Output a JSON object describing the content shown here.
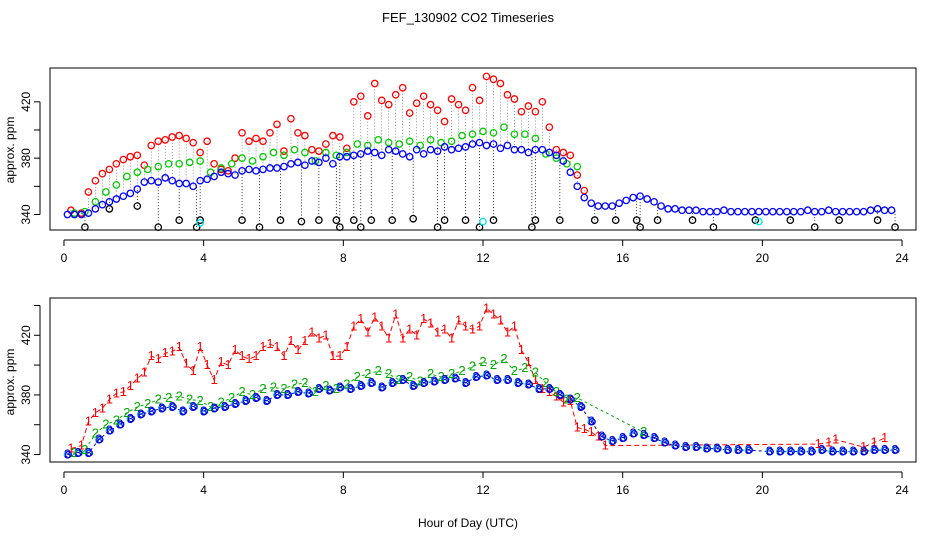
{
  "chart_data": [
    {
      "type": "scatter",
      "title": "FEF_130902  CO2 Timeseries",
      "xlabel": "",
      "ylabel": "approx. ppm",
      "xlim": [
        -0.4,
        24.4
      ],
      "ylim": [
        329,
        444
      ],
      "xticks": [
        0,
        4,
        8,
        12,
        16,
        20,
        24
      ],
      "yticks": [
        340,
        360,
        380,
        400,
        420
      ],
      "ytick_labels": [
        "340",
        "",
        "380",
        "",
        "420"
      ],
      "grid": false,
      "series": [
        {
          "color": "#FF0000",
          "x": [
            0.2,
            0.5,
            0.7,
            0.9,
            1.1,
            1.3,
            1.5,
            1.7,
            1.9,
            2.1,
            2.3,
            2.5,
            2.7,
            2.9,
            3.1,
            3.3,
            3.5,
            3.7,
            3.9,
            4.1,
            4.3,
            4.5,
            4.7,
            4.9,
            5.1,
            5.3,
            5.5,
            5.7,
            5.9,
            6.1,
            6.3,
            6.5,
            6.7,
            6.9,
            7.1,
            7.3,
            7.5,
            7.7,
            7.9,
            8.1,
            8.3,
            8.5,
            8.7,
            8.9,
            9.1,
            9.3,
            9.5,
            9.7,
            9.9,
            10.1,
            10.3,
            10.5,
            10.7,
            10.9,
            11.1,
            11.3,
            11.5,
            11.7,
            11.9,
            12.1,
            12.3,
            12.5,
            12.7,
            12.9,
            13.1,
            13.3,
            13.5,
            13.7,
            13.9,
            14.1,
            14.3,
            14.5,
            14.7,
            14.9
          ],
          "y": [
            343,
            341,
            356,
            364,
            369,
            372,
            376,
            379,
            381,
            382,
            375,
            389,
            392,
            393,
            395,
            396,
            394,
            391,
            384,
            392,
            376,
            372,
            371,
            380,
            398,
            392,
            394,
            392,
            398,
            404,
            385,
            408,
            398,
            396,
            386,
            385,
            390,
            396,
            395,
            387,
            420,
            424,
            410,
            433,
            421,
            418,
            425,
            430,
            412,
            419,
            424,
            418,
            414,
            406,
            422,
            418,
            414,
            430,
            421,
            438,
            436,
            433,
            425,
            422,
            413,
            417,
            413,
            420,
            402,
            386,
            384,
            382,
            368,
            357
          ]
        },
        {
          "color": "#00CC00",
          "x": [
            0.3,
            0.6,
            0.9,
            1.2,
            1.5,
            1.8,
            2.1,
            2.4,
            2.7,
            3.0,
            3.3,
            3.6,
            3.9,
            4.2,
            4.5,
            4.8,
            5.1,
            5.4,
            5.7,
            6.0,
            6.3,
            6.6,
            6.9,
            7.2,
            7.5,
            7.8,
            8.1,
            8.4,
            8.7,
            9.0,
            9.3,
            9.6,
            9.9,
            10.2,
            10.5,
            10.8,
            11.1,
            11.4,
            11.7,
            12.0,
            12.3,
            12.6,
            12.9,
            13.2,
            13.5,
            13.8,
            14.1,
            14.4,
            14.7
          ],
          "y": [
            341,
            342,
            349,
            356,
            361,
            367,
            370,
            372,
            374,
            376,
            376,
            377,
            378,
            370,
            373,
            376,
            380,
            378,
            381,
            384,
            382,
            386,
            384,
            378,
            384,
            382,
            384,
            390,
            389,
            393,
            391,
            390,
            392,
            389,
            393,
            391,
            392,
            396,
            397,
            399,
            398,
            402,
            397,
            397,
            394,
            383,
            380,
            376,
            374
          ]
        },
        {
          "color": "#0000FF",
          "x": [
            0.1,
            0.3,
            0.5,
            0.7,
            0.9,
            1.1,
            1.3,
            1.5,
            1.7,
            1.9,
            2.1,
            2.3,
            2.5,
            2.7,
            2.9,
            3.1,
            3.3,
            3.5,
            3.7,
            3.9,
            4.1,
            4.3,
            4.5,
            4.7,
            4.9,
            5.1,
            5.3,
            5.5,
            5.7,
            5.9,
            6.1,
            6.3,
            6.5,
            6.7,
            6.9,
            7.1,
            7.3,
            7.5,
            7.7,
            7.9,
            8.1,
            8.3,
            8.5,
            8.7,
            8.9,
            9.1,
            9.3,
            9.5,
            9.7,
            9.9,
            10.1,
            10.3,
            10.5,
            10.7,
            10.9,
            11.1,
            11.3,
            11.5,
            11.7,
            11.9,
            12.1,
            12.3,
            12.5,
            12.7,
            12.9,
            13.1,
            13.3,
            13.5,
            13.7,
            13.9,
            14.1,
            14.3,
            14.5,
            14.7,
            14.9,
            15.1,
            15.3,
            15.5,
            15.7,
            15.9,
            16.1,
            16.3,
            16.5,
            16.7,
            16.9,
            17.1,
            17.3,
            17.5,
            17.7,
            17.9,
            18.1,
            18.3,
            18.5,
            18.7,
            18.9,
            19.1,
            19.3,
            19.5,
            19.7,
            19.9,
            20.1,
            20.3,
            20.5,
            20.7,
            20.9,
            21.1,
            21.3,
            21.5,
            21.7,
            21.9,
            22.1,
            22.3,
            22.5,
            22.7,
            22.9,
            23.1,
            23.3,
            23.5,
            23.7
          ],
          "y": [
            340,
            340,
            340,
            341,
            344,
            347,
            349,
            351,
            353,
            355,
            358,
            363,
            364,
            363,
            366,
            364,
            362,
            362,
            360,
            364,
            365,
            367,
            370,
            369,
            368,
            371,
            372,
            371,
            372,
            373,
            373,
            374,
            376,
            377,
            375,
            378,
            377,
            380,
            376,
            381,
            381,
            382,
            383,
            385,
            384,
            382,
            386,
            385,
            383,
            381,
            386,
            383,
            386,
            385,
            388,
            386,
            387,
            388,
            390,
            391,
            389,
            390,
            387,
            389,
            386,
            386,
            384,
            386,
            386,
            384,
            382,
            378,
            370,
            360,
            352,
            348,
            346,
            346,
            346,
            348,
            350,
            352,
            353,
            351,
            349,
            346,
            344,
            344,
            343,
            343,
            343,
            342,
            342,
            342,
            343,
            342,
            342,
            342,
            342,
            342,
            342,
            342,
            342,
            342,
            342,
            342,
            343,
            342,
            342,
            343,
            342,
            342,
            342,
            342,
            342,
            343,
            344,
            343,
            343
          ]
        },
        {
          "color": "#00E5EE",
          "x": [
            3.9,
            12.0,
            19.9
          ],
          "y": [
            334,
            335,
            335
          ]
        },
        {
          "color": "#000000",
          "x": [
            0.6,
            1.3,
            2.1,
            2.7,
            3.3,
            3.8,
            3.9,
            5.1,
            5.6,
            6.2,
            6.8,
            7.3,
            7.8,
            7.9,
            8.3,
            8.5,
            8.8,
            9.4,
            10.0,
            10.7,
            10.9,
            11.5,
            11.9,
            12.3,
            13.4,
            13.5,
            14.2,
            15.2,
            15.8,
            16.4,
            16.5,
            17.0,
            18.0,
            18.6,
            19.8,
            20.8,
            21.5,
            22.2,
            23.3,
            23.8
          ],
          "y": [
            331,
            344,
            346,
            331,
            336,
            331,
            336,
            336,
            331,
            336,
            335,
            336,
            336,
            331,
            336,
            331,
            336,
            336,
            337,
            331,
            336,
            336,
            331,
            336,
            331,
            336,
            336,
            336,
            336,
            336,
            331,
            336,
            336,
            331,
            336,
            336,
            331,
            336,
            336,
            331
          ]
        }
      ]
    },
    {
      "type": "line",
      "title": "",
      "xlabel": "Hour of Day (UTC)",
      "ylabel": "approx. ppm",
      "xlim": [
        -0.4,
        24.4
      ],
      "ylim": [
        335,
        445
      ],
      "xticks": [
        0,
        4,
        8,
        12,
        16,
        20,
        24
      ],
      "yticks": [
        340,
        360,
        380,
        400,
        420,
        440
      ],
      "ytick_labels": [
        "340",
        "",
        "380",
        "",
        "420",
        ""
      ],
      "grid": false,
      "series": [
        {
          "color": "#FF0000",
          "marker": "1",
          "x": [
            0.2,
            0.5,
            0.7,
            0.9,
            1.1,
            1.3,
            1.5,
            1.7,
            1.9,
            2.1,
            2.3,
            2.5,
            2.7,
            2.9,
            3.1,
            3.3,
            3.5,
            3.7,
            3.9,
            4.1,
            4.3,
            4.5,
            4.7,
            4.9,
            5.1,
            5.3,
            5.5,
            5.7,
            5.9,
            6.1,
            6.3,
            6.5,
            6.7,
            6.9,
            7.1,
            7.3,
            7.5,
            7.7,
            7.9,
            8.1,
            8.3,
            8.5,
            8.7,
            8.9,
            9.1,
            9.3,
            9.5,
            9.7,
            9.9,
            10.1,
            10.3,
            10.5,
            10.7,
            10.9,
            11.1,
            11.3,
            11.5,
            11.7,
            11.9,
            12.1,
            12.3,
            12.5,
            12.7,
            12.9,
            13.1,
            13.3,
            13.5,
            13.7,
            13.9,
            14.1,
            14.3,
            14.5,
            14.7,
            14.9,
            15.1,
            15.3,
            15.5,
            21.6,
            21.9,
            22.1,
            22.9,
            23.2,
            23.5
          ],
          "y": [
            344,
            346,
            362,
            368,
            371,
            377,
            381,
            382,
            386,
            391,
            395,
            406,
            404,
            408,
            409,
            412,
            401,
            396,
            412,
            400,
            390,
            402,
            400,
            410,
            406,
            404,
            406,
            412,
            414,
            412,
            406,
            416,
            410,
            416,
            422,
            418,
            420,
            406,
            406,
            412,
            426,
            431,
            422,
            432,
            426,
            418,
            434,
            418,
            424,
            420,
            431,
            428,
            422,
            424,
            418,
            430,
            426,
            424,
            426,
            438,
            434,
            430,
            422,
            426,
            410,
            402,
            390,
            384,
            382,
            379,
            375,
            376,
            358,
            357,
            355,
            352,
            346,
            347,
            348,
            350,
            345,
            348,
            351
          ]
        },
        {
          "color": "#00AA00",
          "marker": "2",
          "x": [
            0.3,
            0.6,
            0.9,
            1.2,
            1.5,
            1.8,
            2.1,
            2.4,
            2.7,
            3.0,
            3.3,
            3.6,
            3.9,
            4.2,
            4.5,
            4.8,
            5.1,
            5.4,
            5.7,
            6.0,
            6.3,
            6.6,
            6.9,
            7.2,
            7.5,
            7.8,
            8.1,
            8.4,
            8.7,
            9.0,
            9.3,
            9.6,
            9.9,
            10.2,
            10.5,
            10.8,
            11.1,
            11.4,
            11.7,
            12.0,
            12.3,
            12.6,
            12.9,
            13.2,
            13.5,
            13.8,
            14.1,
            14.4,
            14.7,
            16.6
          ],
          "y": [
            341,
            343,
            354,
            360,
            363,
            368,
            372,
            374,
            377,
            378,
            379,
            377,
            376,
            372,
            375,
            378,
            382,
            380,
            384,
            385,
            384,
            387,
            388,
            382,
            386,
            384,
            387,
            392,
            394,
            396,
            394,
            390,
            392,
            389,
            394,
            392,
            394,
            396,
            399,
            402,
            400,
            404,
            396,
            398,
            395,
            388,
            382,
            377,
            378,
            355
          ]
        },
        {
          "color": "#0000CC",
          "marker": "3",
          "x": [
            0.1,
            0.4,
            0.7,
            1.0,
            1.3,
            1.6,
            1.9,
            2.2,
            2.5,
            2.8,
            3.1,
            3.4,
            3.7,
            4.0,
            4.3,
            4.6,
            4.9,
            5.2,
            5.5,
            5.8,
            6.1,
            6.4,
            6.7,
            7.0,
            7.3,
            7.6,
            7.9,
            8.2,
            8.5,
            8.8,
            9.1,
            9.4,
            9.7,
            10.0,
            10.3,
            10.6,
            10.9,
            11.2,
            11.5,
            11.8,
            12.1,
            12.4,
            12.7,
            13.0,
            13.3,
            13.6,
            13.9,
            14.2,
            14.5,
            14.8,
            15.1,
            15.4,
            15.7,
            16.0,
            16.3,
            16.6,
            16.9,
            17.2,
            17.5,
            17.8,
            18.1,
            18.4,
            18.7,
            19.0,
            19.3,
            19.6,
            20.2,
            20.5,
            20.8,
            21.1,
            21.4,
            21.7,
            22.0,
            22.3,
            22.6,
            22.9,
            23.2,
            23.5,
            23.8
          ],
          "y": [
            340,
            341,
            341,
            350,
            356,
            360,
            364,
            367,
            369,
            371,
            372,
            369,
            372,
            369,
            371,
            372,
            374,
            376,
            378,
            376,
            380,
            380,
            382,
            381,
            384,
            383,
            385,
            384,
            386,
            388,
            385,
            388,
            390,
            386,
            388,
            389,
            390,
            391,
            388,
            392,
            393,
            390,
            390,
            388,
            387,
            384,
            384,
            380,
            377,
            372,
            362,
            352,
            349,
            351,
            354,
            353,
            351,
            348,
            346,
            345,
            345,
            344,
            344,
            343,
            343,
            343,
            342,
            342,
            342,
            342,
            342,
            343,
            342,
            342,
            342,
            342,
            343,
            343,
            343
          ]
        }
      ]
    }
  ]
}
